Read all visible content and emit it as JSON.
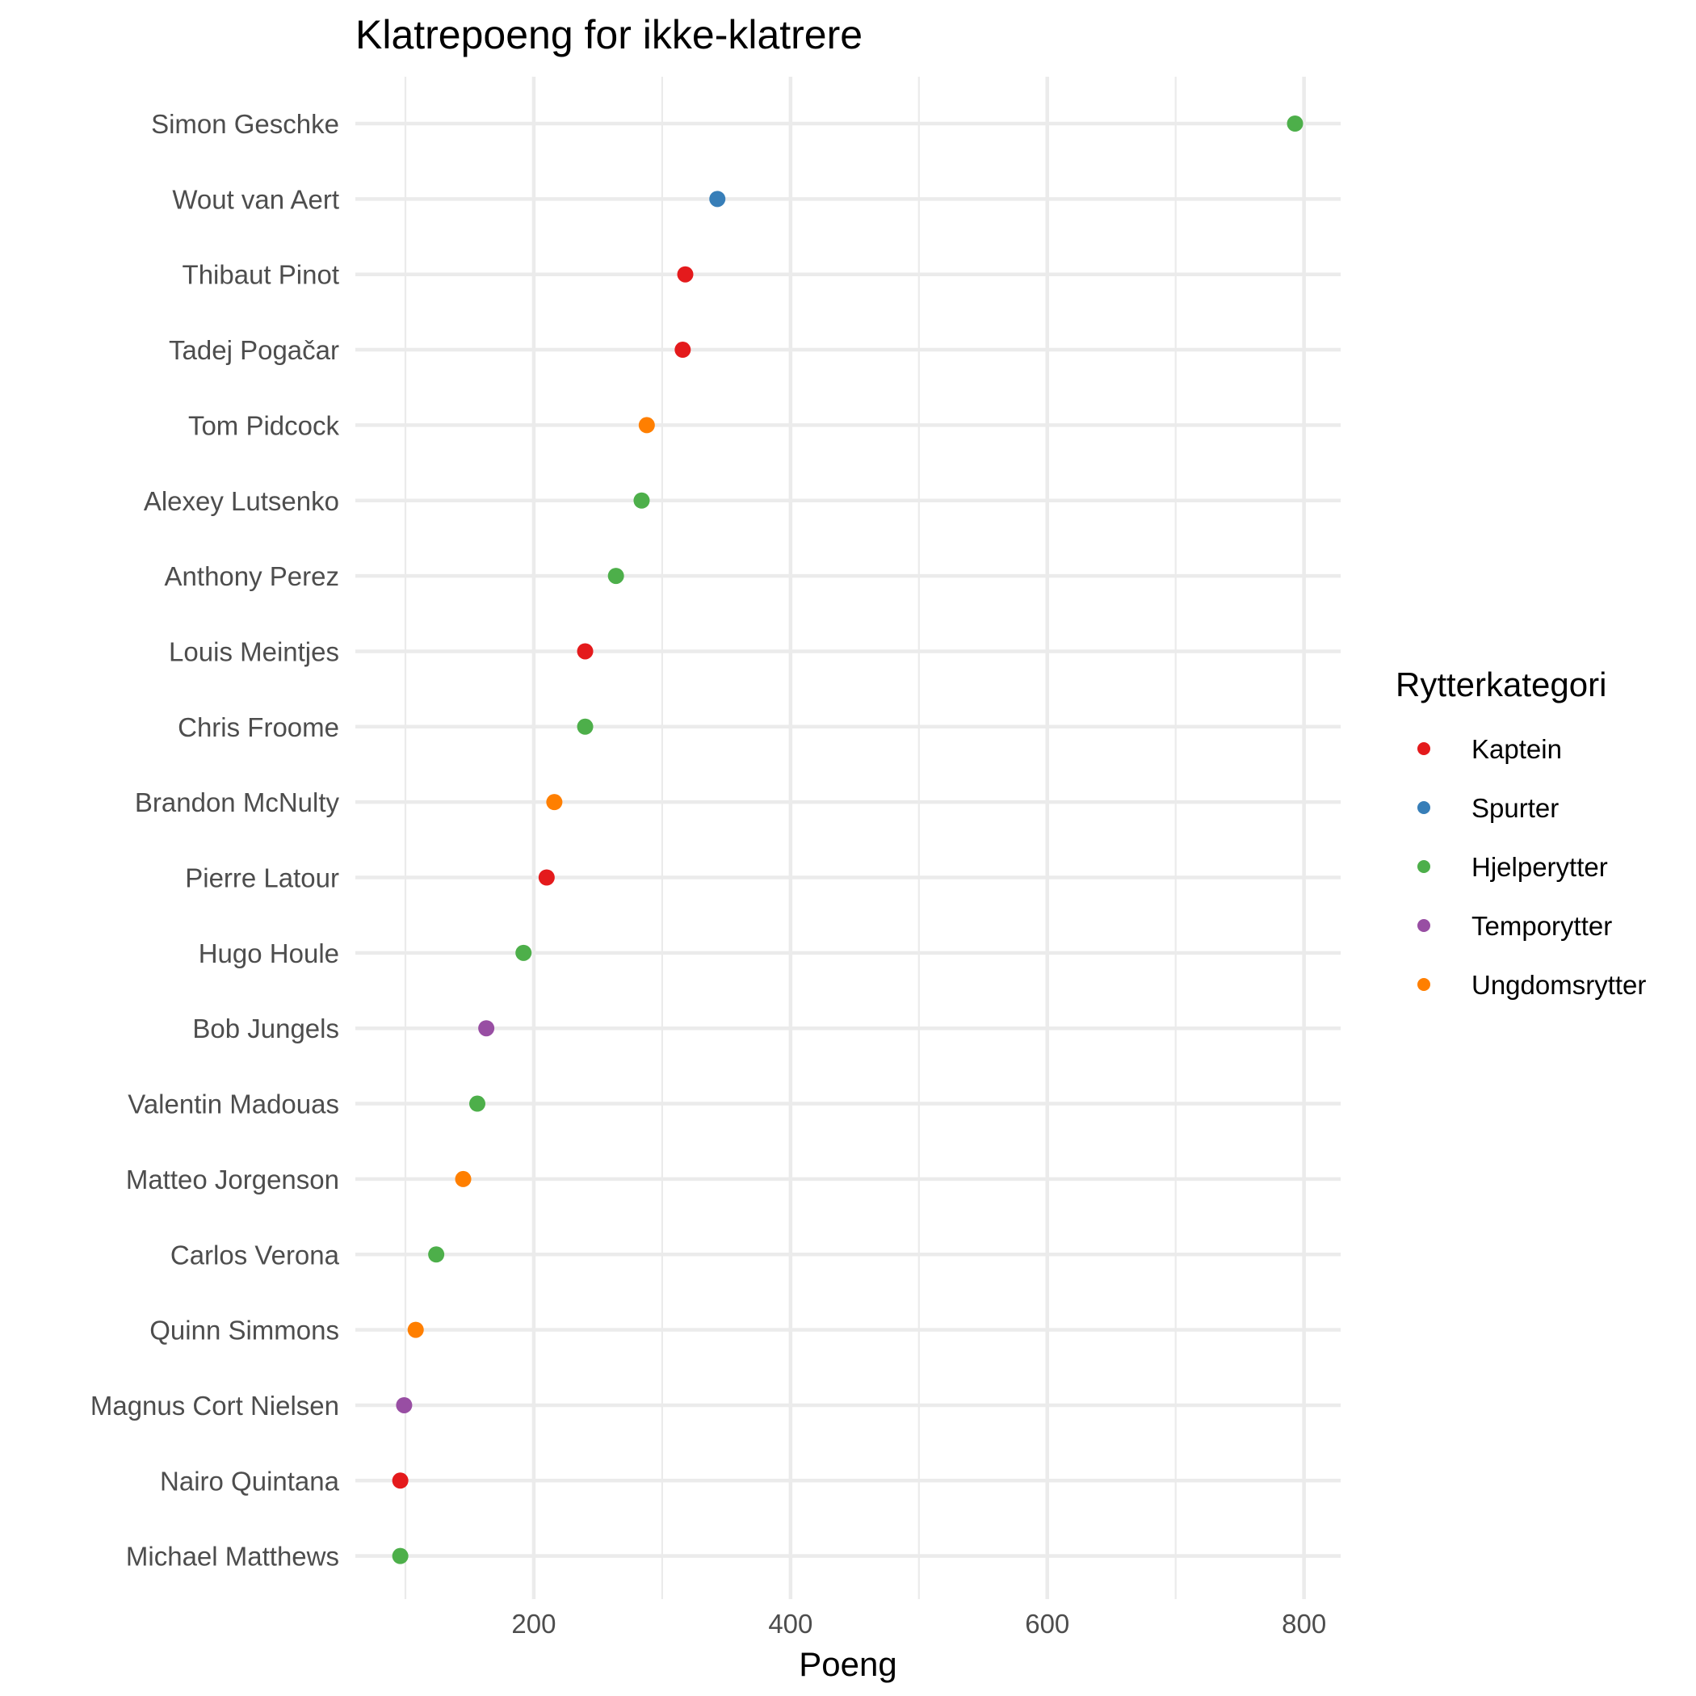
{
  "chart_data": {
    "type": "scatter",
    "title": "Klatrepoeng for ikke-klatrere",
    "xlabel": "Poeng",
    "ylabel": "",
    "xlim": [
      60,
      830
    ],
    "xticks": [
      200,
      400,
      600,
      800
    ],
    "xticks_minor": [
      100,
      300,
      500,
      700
    ],
    "grid": true,
    "legend": {
      "title": "Rytterkategori",
      "position": "right",
      "entries": [
        {
          "name": "Kaptein",
          "color": "#e41a1c"
        },
        {
          "name": "Spurter",
          "color": "#377eb8"
        },
        {
          "name": "Hjelperytter",
          "color": "#4daf4a"
        },
        {
          "name": "Temporytter",
          "color": "#984ea3"
        },
        {
          "name": "Ungdomsrytter",
          "color": "#ff7f00"
        }
      ]
    },
    "points": [
      {
        "name": "Simon Geschke",
        "value": 793,
        "category": "Hjelperytter"
      },
      {
        "name": "Wout van Aert",
        "value": 343,
        "category": "Spurter"
      },
      {
        "name": "Thibaut Pinot",
        "value": 318,
        "category": "Kaptein"
      },
      {
        "name": "Tadej Pogačar",
        "value": 316,
        "category": "Kaptein"
      },
      {
        "name": "Tom Pidcock",
        "value": 288,
        "category": "Ungdomsrytter"
      },
      {
        "name": "Alexey Lutsenko",
        "value": 284,
        "category": "Hjelperytter"
      },
      {
        "name": "Anthony Perez",
        "value": 264,
        "category": "Hjelperytter"
      },
      {
        "name": "Louis Meintjes",
        "value": 240,
        "category": "Kaptein"
      },
      {
        "name": "Chris Froome",
        "value": 240,
        "category": "Hjelperytter"
      },
      {
        "name": "Brandon McNulty",
        "value": 216,
        "category": "Ungdomsrytter"
      },
      {
        "name": "Pierre Latour",
        "value": 210,
        "category": "Kaptein"
      },
      {
        "name": "Hugo Houle",
        "value": 192,
        "category": "Hjelperytter"
      },
      {
        "name": "Bob Jungels",
        "value": 163,
        "category": "Temporytter"
      },
      {
        "name": "Valentin Madouas",
        "value": 156,
        "category": "Hjelperytter"
      },
      {
        "name": "Matteo Jorgenson",
        "value": 145,
        "category": "Ungdomsrytter"
      },
      {
        "name": "Carlos Verona",
        "value": 124,
        "category": "Hjelperytter"
      },
      {
        "name": "Quinn Simmons",
        "value": 108,
        "category": "Ungdomsrytter"
      },
      {
        "name": "Magnus Cort Nielsen",
        "value": 99,
        "category": "Temporytter"
      },
      {
        "name": "Nairo Quintana",
        "value": 96,
        "category": "Kaptein"
      },
      {
        "name": "Michael Matthews",
        "value": 96,
        "category": "Hjelperytter"
      }
    ]
  }
}
